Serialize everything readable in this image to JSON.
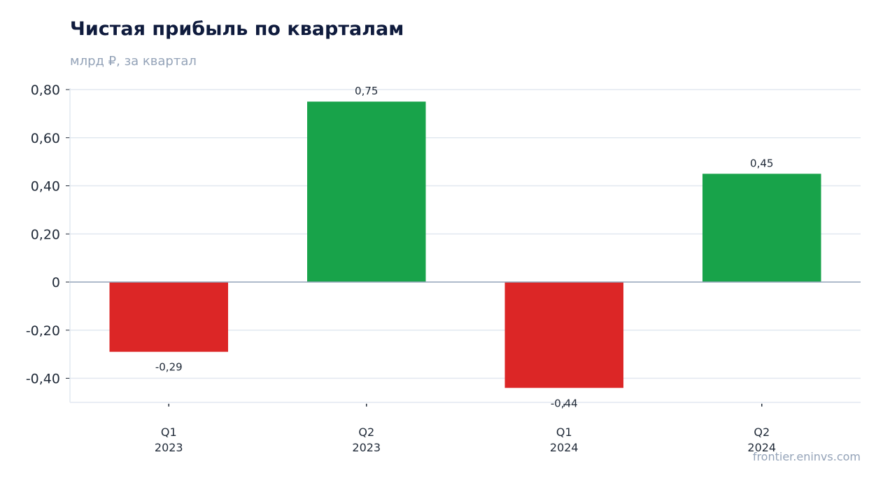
{
  "title": "Чистая прибыль по кварталам",
  "subtitle": "млрд ₽, за квартал",
  "watermark": "frontier.eninvs.com",
  "colors": {
    "positive": "#18a34a",
    "negative": "#dc2626",
    "grid": "#e2e8f0",
    "zero_line": "#94a3b8",
    "axis": "#e2e8f0"
  },
  "chart_data": {
    "type": "bar",
    "title": "Чистая прибыль по кварталам",
    "subtitle": "млрд ₽, за квартал",
    "categories": [
      {
        "quarter": "Q1",
        "year": "2023"
      },
      {
        "quarter": "Q2",
        "year": "2023"
      },
      {
        "quarter": "Q1",
        "year": "2024"
      },
      {
        "quarter": "Q2",
        "year": "2024"
      }
    ],
    "values": [
      -0.29,
      0.75,
      -0.44,
      0.45
    ],
    "value_labels": [
      "-0,29",
      "0,75",
      "-0,44",
      "0,45"
    ],
    "ylim": [
      -0.5,
      0.8
    ],
    "yticks": [
      {
        "value": 0.8,
        "label": "0,80"
      },
      {
        "value": 0.6,
        "label": "0,60"
      },
      {
        "value": 0.4,
        "label": "0,40"
      },
      {
        "value": 0.2,
        "label": "0,20"
      },
      {
        "value": 0,
        "label": "0"
      },
      {
        "value": -0.2,
        "label": "-0,20"
      },
      {
        "value": -0.4,
        "label": "-0,40"
      }
    ],
    "grid": true,
    "legend": "none"
  }
}
